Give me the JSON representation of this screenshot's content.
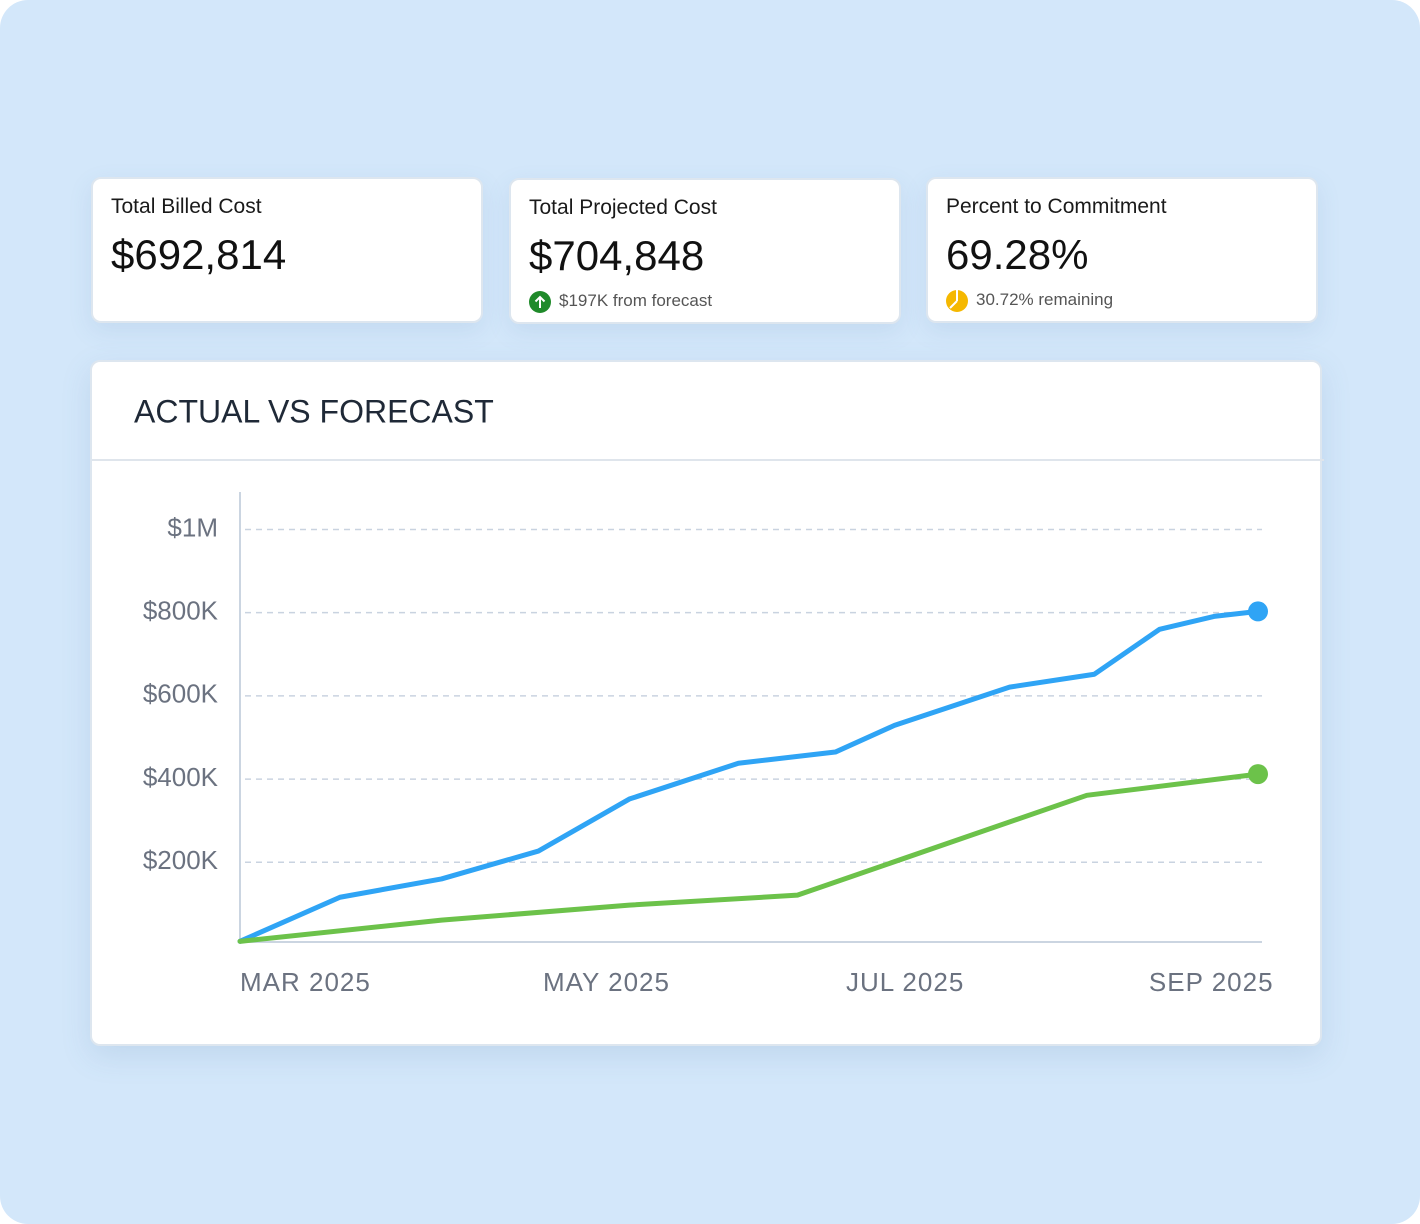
{
  "cards": [
    {
      "title": "Total Billed Cost",
      "value": "$692,814"
    },
    {
      "title": "Total Projected Cost",
      "value": "$704,848",
      "note": "$197K from forecast"
    },
    {
      "title": "Percent to Commitment",
      "value": "69.28%",
      "note": "30.72% remaining"
    }
  ],
  "chart_data": {
    "type": "line",
    "title": "ACTUAL VS FORECAST",
    "xlim": [
      3,
      9.72
    ],
    "xticks": [
      {
        "value": 3,
        "label": "MAR 2025"
      },
      {
        "value": 5,
        "label": "MAY 2025"
      },
      {
        "value": 7,
        "label": "JUL 2025"
      },
      {
        "value": 9,
        "label": "SEP 2025"
      }
    ],
    "ylim": [
      0,
      1090000
    ],
    "yticks": [
      {
        "value": 200000,
        "label": "$200K"
      },
      {
        "value": 400000,
        "label": "$400K"
      },
      {
        "value": 600000,
        "label": "$600K"
      },
      {
        "value": 800000,
        "label": "$800K"
      },
      {
        "value": 1000000,
        "label": "$1M"
      }
    ],
    "grid": true,
    "series": [
      {
        "color": "#2fa4f5",
        "x": [
          3,
          3.66,
          4.33,
          4.97,
          5.57,
          6.29,
          6.93,
          7.32,
          8.08,
          8.64,
          9.07,
          9.43,
          9.72
        ],
        "values": [
          10000,
          116000,
          160000,
          227000,
          352000,
          438000,
          465000,
          529000,
          621000,
          652000,
          760000,
          791000,
          803000
        ]
      },
      {
        "color": "#6cc24a",
        "x": [
          3,
          4.33,
          5.57,
          6.68,
          8.59,
          9.72
        ],
        "values": [
          10000,
          61000,
          97000,
          121000,
          361000,
          412000
        ]
      }
    ]
  }
}
